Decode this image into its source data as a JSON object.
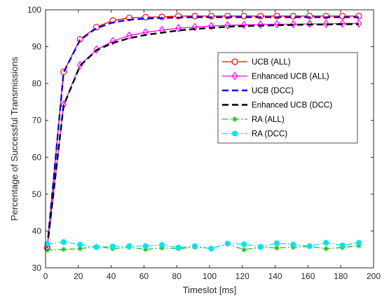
{
  "chart_data": {
    "type": "line",
    "title": "",
    "xlabel": "Timeslot [ms]",
    "ylabel": "Percentage of Successful Transmissions",
    "xlim": [
      0,
      200
    ],
    "ylim": [
      30,
      100
    ],
    "xticks": [
      0,
      20,
      40,
      60,
      80,
      100,
      120,
      140,
      160,
      180,
      200
    ],
    "yticks": [
      30,
      40,
      50,
      60,
      70,
      80,
      90,
      100
    ],
    "grid": false,
    "legend_position": "right-middle",
    "x": [
      1,
      11,
      21,
      31,
      41,
      51,
      61,
      71,
      81,
      91,
      101,
      111,
      121,
      131,
      141,
      151,
      161,
      171,
      181,
      191
    ],
    "series": [
      {
        "name": "UCB (ALL)",
        "color": "#ff0000",
        "line_style": "solid",
        "marker": "circle",
        "values": [
          35.5,
          83.2,
          92.0,
          95.3,
          97.1,
          97.8,
          98.0,
          98.1,
          98.3,
          98.3,
          98.3,
          98.3,
          98.3,
          98.3,
          98.3,
          98.3,
          98.3,
          98.3,
          98.3,
          98.3
        ]
      },
      {
        "name": "Enhanced UCB (ALL)",
        "color": "#ff00ff",
        "line_style": "solid",
        "marker": "diamond",
        "values": [
          35.5,
          74.3,
          85.0,
          89.2,
          91.5,
          93.0,
          93.9,
          94.5,
          95.0,
          95.3,
          95.6,
          95.8,
          95.9,
          96.0,
          96.1,
          96.1,
          96.2,
          96.2,
          96.3,
          96.3
        ]
      },
      {
        "name": "UCB (DCC)",
        "color": "#0000ff",
        "line_style": "dashed",
        "marker": "none",
        "values": [
          35.5,
          83.0,
          91.8,
          95.0,
          96.6,
          97.3,
          97.6,
          97.8,
          97.9,
          98.0,
          98.0,
          98.0,
          98.0,
          98.0,
          98.0,
          98.0,
          98.0,
          98.0,
          98.0,
          98.0
        ]
      },
      {
        "name": "Enhanced UCB (DCC)",
        "color": "#000000",
        "line_style": "dashed",
        "marker": "none",
        "values": [
          35.5,
          74.0,
          84.8,
          89.0,
          91.0,
          92.3,
          93.2,
          93.8,
          94.4,
          94.8,
          95.1,
          95.4,
          95.6,
          95.7,
          95.8,
          95.9,
          96.0,
          96.0,
          96.1,
          96.1
        ]
      },
      {
        "name": "RA (ALL)",
        "color": "#22b822",
        "line_style": "dashdot",
        "marker": "asterisk",
        "values": [
          34.8,
          35.0,
          35.2,
          35.8,
          35.2,
          35.6,
          35.0,
          35.4,
          35.2,
          35.6,
          35.3,
          36.5,
          34.9,
          35.6,
          35.4,
          35.6,
          35.8,
          35.2,
          35.5,
          36.0
        ]
      },
      {
        "name": "RA (DCC)",
        "color": "#00e5ee",
        "line_style": "dashdot",
        "marker": "filled-circle",
        "values": [
          36.5,
          37.0,
          36.3,
          35.6,
          35.8,
          35.9,
          35.9,
          36.2,
          35.5,
          35.9,
          35.2,
          36.6,
          36.4,
          35.7,
          36.7,
          36.3,
          35.9,
          36.8,
          36.1,
          36.8
        ]
      }
    ]
  }
}
